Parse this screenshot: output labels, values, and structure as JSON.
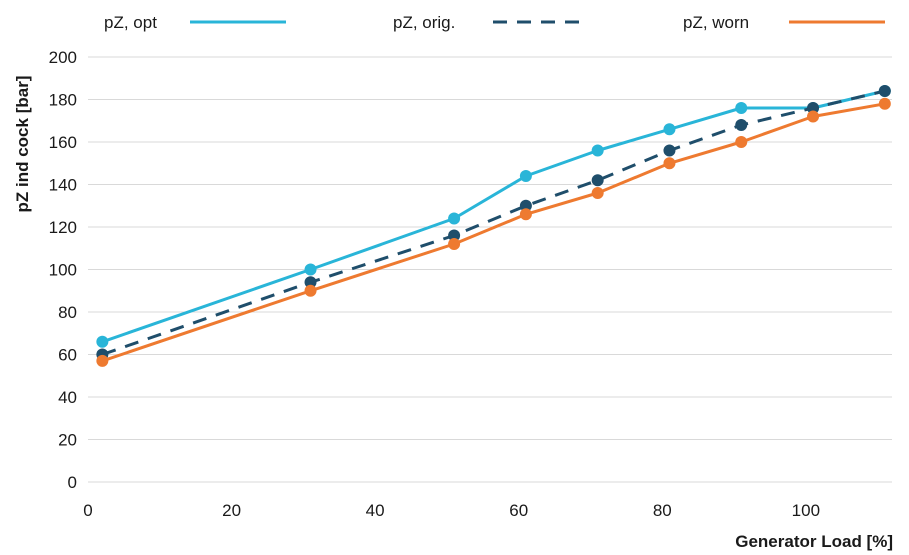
{
  "chart_data": {
    "type": "line",
    "title": "",
    "xlabel": "Generator Load [%]",
    "ylabel": "pZ ind cock [bar]",
    "xlim": [
      0,
      112
    ],
    "ylim": [
      0,
      200
    ],
    "xticks": [
      0,
      20,
      40,
      60,
      80,
      100
    ],
    "yticks": [
      0,
      20,
      40,
      60,
      80,
      100,
      120,
      140,
      160,
      180,
      200
    ],
    "grid": "horizontal",
    "legend_position": "top",
    "series": [
      {
        "name": "pZ, opt",
        "color": "#29b5d8",
        "dash": "solid",
        "x": [
          2,
          31,
          51,
          61,
          71,
          81,
          91,
          101,
          111
        ],
        "y": [
          66,
          100,
          124,
          144,
          156,
          166,
          176,
          176,
          184
        ]
      },
      {
        "name": "pZ, orig.",
        "color": "#1f4e6b",
        "dash": "dashed",
        "x": [
          2,
          31,
          51,
          61,
          71,
          81,
          91,
          101,
          111
        ],
        "y": [
          60,
          94,
          116,
          130,
          142,
          156,
          168,
          176,
          184
        ]
      },
      {
        "name": "pZ, worn",
        "color": "#ee7a30",
        "dash": "solid",
        "x": [
          2,
          31,
          51,
          61,
          71,
          81,
          91,
          101,
          111
        ],
        "y": [
          57,
          90,
          112,
          126,
          136,
          150,
          160,
          172,
          178
        ]
      }
    ]
  }
}
